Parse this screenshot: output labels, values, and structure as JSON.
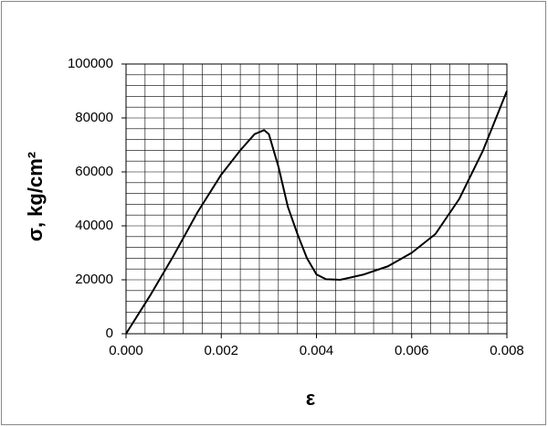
{
  "chart_data": {
    "type": "line",
    "x_label": "ε",
    "y_label": "σ, kg/cm²",
    "x": [
      0,
      0.0005,
      0.001,
      0.0015,
      0.002,
      0.0024,
      0.0027,
      0.0029,
      0.003,
      0.0032,
      0.0034,
      0.0036,
      0.0038,
      0.004,
      0.0042,
      0.0045,
      0.005,
      0.0055,
      0.006,
      0.0065,
      0.007,
      0.0075,
      0.008
    ],
    "series": [
      {
        "color": "#000000",
        "values": [
          0,
          14000,
          29000,
          45000,
          59000,
          68000,
          74000,
          75500,
          74000,
          62000,
          47000,
          37000,
          28000,
          22000,
          20200,
          20000,
          22000,
          25000,
          30000,
          37000,
          50000,
          68000,
          90000
        ]
      }
    ],
    "xlim": [
      0,
      0.008
    ],
    "xticks": [
      {
        "value": 0,
        "label": "0.000"
      },
      {
        "value": 0.002,
        "label": "0.002"
      },
      {
        "value": 0.004,
        "label": "0.004"
      },
      {
        "value": 0.006,
        "label": "0.006"
      },
      {
        "value": 0.008,
        "label": "0.008"
      }
    ],
    "ylim": [
      0,
      100000
    ],
    "yticks": [
      0,
      20000,
      40000,
      60000,
      80000,
      100000
    ],
    "grid": true
  }
}
